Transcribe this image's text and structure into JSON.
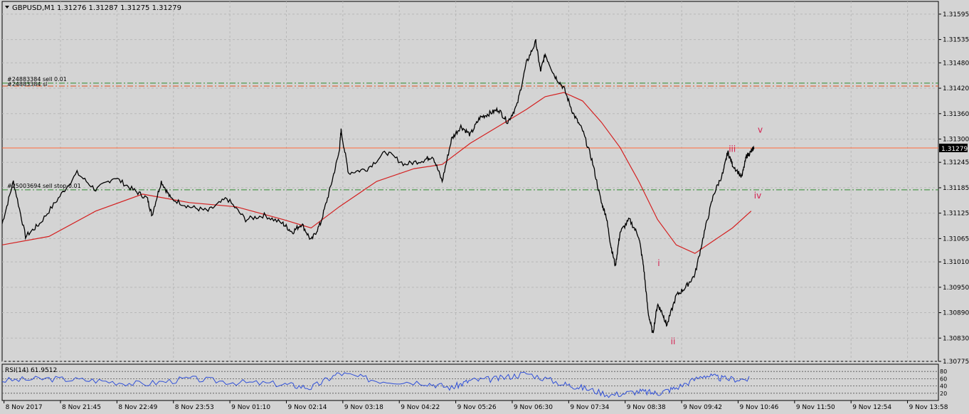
{
  "header": {
    "symbol_label": "GBPUSD,M1",
    "ohlc": "1.31276 1.31287 1.31275 1.31279"
  },
  "price_axis": {
    "labels": [
      "1.31595",
      "1.31535",
      "1.31480",
      "1.31420",
      "1.31360",
      "1.31300",
      "1.31245",
      "1.31185",
      "1.31125",
      "1.31065",
      "1.31010",
      "1.30950",
      "1.30890",
      "1.30830",
      "1.30775"
    ],
    "current_price_label": "1.31279",
    "current_price": 1.31279
  },
  "time_axis": {
    "labels": [
      "8 Nov 2017",
      "8 Nov 21:45",
      "8 Nov 22:49",
      "8 Nov 23:53",
      "9 Nov 01:10",
      "9 Nov 02:14",
      "9 Nov 03:18",
      "9 Nov 04:22",
      "9 Nov 05:26",
      "9 Nov 06:30",
      "9 Nov 07:34",
      "9 Nov 08:38",
      "9 Nov 09:42",
      "9 Nov 10:46",
      "9 Nov 11:50",
      "9 Nov 12:54",
      "9 Nov 13:58"
    ]
  },
  "order_lines": [
    {
      "label": "#24883384 sell 0.01",
      "price": 1.31432,
      "color": "#2e8b2e"
    },
    {
      "label": "#24883384 sl",
      "price": 1.31425,
      "color": "#e05020"
    },
    {
      "label": "#25003694 sell stop 0.01",
      "price": 1.3118,
      "color": "#2e8b2e"
    }
  ],
  "wave_labels": [
    {
      "text": "i",
      "price": 1.31,
      "pos": 0.7
    },
    {
      "text": "ii",
      "price": 1.30815,
      "pos": 0.714
    },
    {
      "text": "iii",
      "price": 1.3127,
      "pos": 0.776
    },
    {
      "text": "iv",
      "price": 1.3116,
      "pos": 0.803
    },
    {
      "text": "v",
      "price": 1.31315,
      "pos": 0.807
    }
  ],
  "rsi": {
    "label": "RSI(14) 61.9512",
    "levels": [
      "80",
      "60",
      "40",
      "20"
    ],
    "level_values": [
      80,
      60,
      40,
      20
    ]
  },
  "chart_data": {
    "type": "line",
    "title": "GBPUSD,M1",
    "y_range": [
      1.30775,
      1.31625
    ],
    "series": [
      {
        "name": "",
        "color": "#000000",
        "points": [
          [
            0,
            1.311
          ],
          [
            0.012,
            1.312
          ],
          [
            0.025,
            1.3107
          ],
          [
            0.04,
            1.311
          ],
          [
            0.06,
            1.3116
          ],
          [
            0.08,
            1.3122
          ],
          [
            0.1,
            1.3118
          ],
          [
            0.12,
            1.3121
          ],
          [
            0.14,
            1.3118
          ],
          [
            0.155,
            1.3116
          ],
          [
            0.16,
            1.3112
          ],
          [
            0.17,
            1.312
          ],
          [
            0.18,
            1.3116
          ],
          [
            0.2,
            1.3114
          ],
          [
            0.22,
            1.3113
          ],
          [
            0.24,
            1.3116
          ],
          [
            0.26,
            1.3111
          ],
          [
            0.28,
            1.3112
          ],
          [
            0.3,
            1.311
          ],
          [
            0.31,
            1.3108
          ],
          [
            0.32,
            1.311
          ],
          [
            0.33,
            1.3106
          ],
          [
            0.34,
            1.311
          ],
          [
            0.35,
            1.3118
          ],
          [
            0.36,
            1.3127
          ],
          [
            0.362,
            1.3132
          ],
          [
            0.37,
            1.3122
          ],
          [
            0.39,
            1.3123
          ],
          [
            0.41,
            1.3127
          ],
          [
            0.43,
            1.3124
          ],
          [
            0.45,
            1.3125
          ],
          [
            0.46,
            1.3126
          ],
          [
            0.47,
            1.312
          ],
          [
            0.48,
            1.313
          ],
          [
            0.49,
            1.3133
          ],
          [
            0.5,
            1.3131
          ],
          [
            0.51,
            1.3135
          ],
          [
            0.52,
            1.3136
          ],
          [
            0.53,
            1.3137
          ],
          [
            0.54,
            1.3134
          ],
          [
            0.55,
            1.3138
          ],
          [
            0.56,
            1.3148
          ],
          [
            0.57,
            1.3153
          ],
          [
            0.575,
            1.3146
          ],
          [
            0.58,
            1.315
          ],
          [
            0.59,
            1.3145
          ],
          [
            0.6,
            1.3142
          ],
          [
            0.61,
            1.3136
          ],
          [
            0.62,
            1.3132
          ],
          [
            0.63,
            1.3125
          ],
          [
            0.64,
            1.3115
          ],
          [
            0.645,
            1.3112
          ],
          [
            0.65,
            1.3105
          ],
          [
            0.655,
            1.31
          ],
          [
            0.66,
            1.3108
          ],
          [
            0.67,
            1.3111
          ],
          [
            0.68,
            1.3107
          ],
          [
            0.685,
            1.31
          ],
          [
            0.69,
            1.3089
          ],
          [
            0.695,
            1.3084
          ],
          [
            0.7,
            1.3091
          ],
          [
            0.705,
            1.3089
          ],
          [
            0.71,
            1.3086
          ],
          [
            0.72,
            1.3093
          ],
          [
            0.73,
            1.3095
          ],
          [
            0.74,
            1.3098
          ],
          [
            0.75,
            1.3108
          ],
          [
            0.76,
            1.3117
          ],
          [
            0.77,
            1.3122
          ],
          [
            0.775,
            1.3127
          ],
          [
            0.78,
            1.3124
          ],
          [
            0.79,
            1.3121
          ],
          [
            0.795,
            1.3126
          ],
          [
            0.8,
            1.3127
          ],
          [
            0.803,
            1.3128
          ]
        ]
      },
      {
        "name": "",
        "color": "#d42020",
        "points": [
          [
            0,
            1.3105
          ],
          [
            0.05,
            1.3107
          ],
          [
            0.1,
            1.3113
          ],
          [
            0.15,
            1.3117
          ],
          [
            0.2,
            1.3115
          ],
          [
            0.25,
            1.3114
          ],
          [
            0.3,
            1.3111
          ],
          [
            0.33,
            1.3109
          ],
          [
            0.36,
            1.3114
          ],
          [
            0.4,
            1.312
          ],
          [
            0.44,
            1.3123
          ],
          [
            0.47,
            1.3124
          ],
          [
            0.5,
            1.3129
          ],
          [
            0.53,
            1.3133
          ],
          [
            0.56,
            1.3137
          ],
          [
            0.58,
            1.314
          ],
          [
            0.6,
            1.3141
          ],
          [
            0.62,
            1.3139
          ],
          [
            0.64,
            1.3134
          ],
          [
            0.66,
            1.3128
          ],
          [
            0.68,
            1.312
          ],
          [
            0.7,
            1.3111
          ],
          [
            0.72,
            1.3105
          ],
          [
            0.74,
            1.3103
          ],
          [
            0.76,
            1.3106
          ],
          [
            0.78,
            1.3109
          ],
          [
            0.8,
            1.3113
          ]
        ]
      }
    ],
    "rsi_series": {
      "name": "RSI(14)",
      "color": "#3050d8",
      "y_range": [
        0,
        100
      ],
      "points": [
        [
          0,
          55
        ],
        [
          0.05,
          60
        ],
        [
          0.1,
          55
        ],
        [
          0.15,
          45
        ],
        [
          0.2,
          60
        ],
        [
          0.25,
          50
        ],
        [
          0.3,
          45
        ],
        [
          0.33,
          35
        ],
        [
          0.36,
          75
        ],
        [
          0.4,
          55
        ],
        [
          0.45,
          50
        ],
        [
          0.48,
          35
        ],
        [
          0.5,
          55
        ],
        [
          0.53,
          60
        ],
        [
          0.56,
          75
        ],
        [
          0.6,
          45
        ],
        [
          0.62,
          35
        ],
        [
          0.65,
          15
        ],
        [
          0.68,
          25
        ],
        [
          0.7,
          20
        ],
        [
          0.72,
          35
        ],
        [
          0.75,
          70
        ],
        [
          0.77,
          60
        ],
        [
          0.8,
          58
        ]
      ]
    }
  }
}
